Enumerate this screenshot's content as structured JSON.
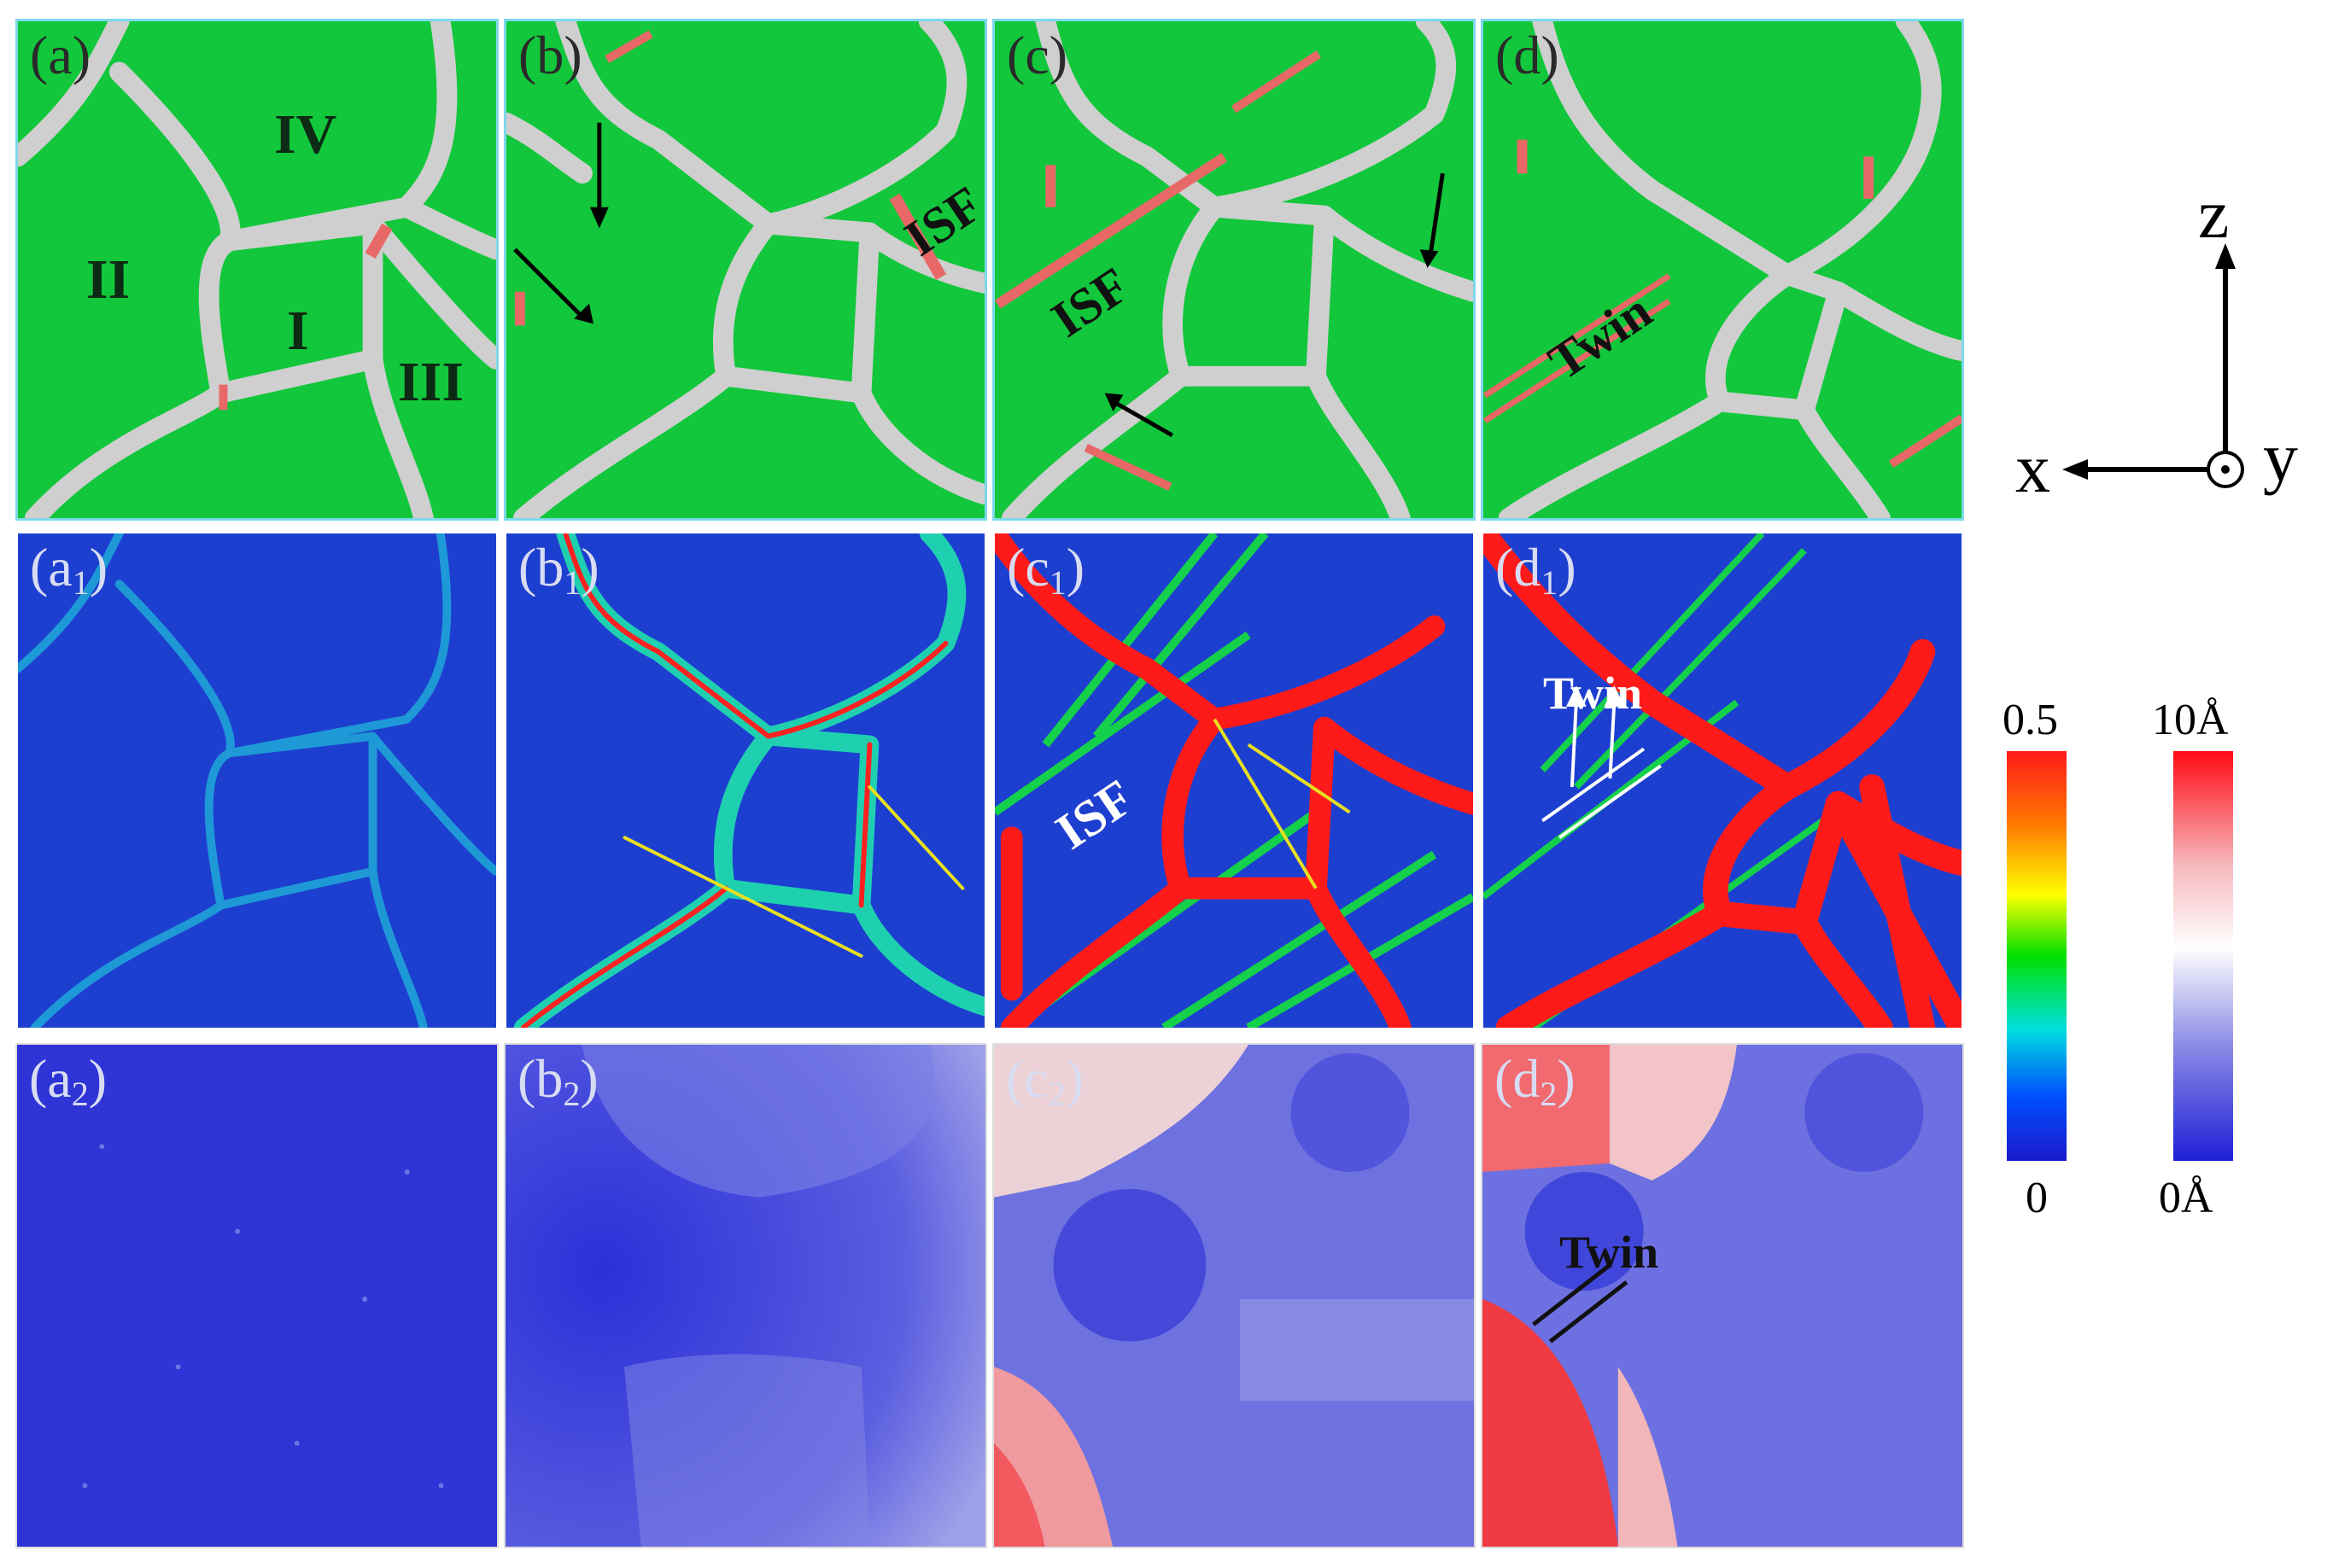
{
  "panels": {
    "row1": [
      {
        "label": "(a)"
      },
      {
        "label": "(b)"
      },
      {
        "label": "(c)"
      },
      {
        "label": "(d)"
      }
    ],
    "row2": [
      {
        "label_base": "(a",
        "label_sub": "1",
        "label_close": ")"
      },
      {
        "label_base": "(b",
        "label_sub": "1",
        "label_close": ")"
      },
      {
        "label_base": "(c",
        "label_sub": "1",
        "label_close": ")"
      },
      {
        "label_base": "(d",
        "label_sub": "1",
        "label_close": ")"
      }
    ],
    "row3": [
      {
        "label_base": "(a",
        "label_sub": "2",
        "label_close": ")"
      },
      {
        "label_base": "(b",
        "label_sub": "2",
        "label_close": ")"
      },
      {
        "label_base": "(c",
        "label_sub": "2",
        "label_close": ")"
      },
      {
        "label_base": "(d",
        "label_sub": "2",
        "label_close": ")"
      }
    ]
  },
  "grain_labels": {
    "g1": "I",
    "g2": "II",
    "g3": "III",
    "g4": "IV"
  },
  "annotations": {
    "b_isf": "ISF",
    "c_isf": "ISF",
    "d_twin": "Twin",
    "c1_isf": "ISF",
    "d1_twin": "Twin",
    "d2_twin": "Twin"
  },
  "axes": {
    "z": "z",
    "x": "x",
    "y": "y"
  },
  "colorbars": {
    "strain": {
      "max": "0.5",
      "min": "0",
      "stops": [
        "#ff1a1a",
        "#ff7a00",
        "#ffff00",
        "#00e000",
        "#00dede",
        "#0050ff",
        "#1a1acc"
      ]
    },
    "displacement": {
      "max": "10Å",
      "min": "0Å",
      "stops": [
        "#ff0a14",
        "#f6b9be",
        "#ffffff",
        "#8a8ae6",
        "#1f1fd6"
      ]
    }
  },
  "colors": {
    "fcc_green": "#12c73b",
    "boundary_gray": "#cfcfcf",
    "hcp_red": "#e86868",
    "strain_bg": "#1d3fd0",
    "disp_bg": "#3a3ad8",
    "frame_cyan": "#7ed8ec"
  }
}
